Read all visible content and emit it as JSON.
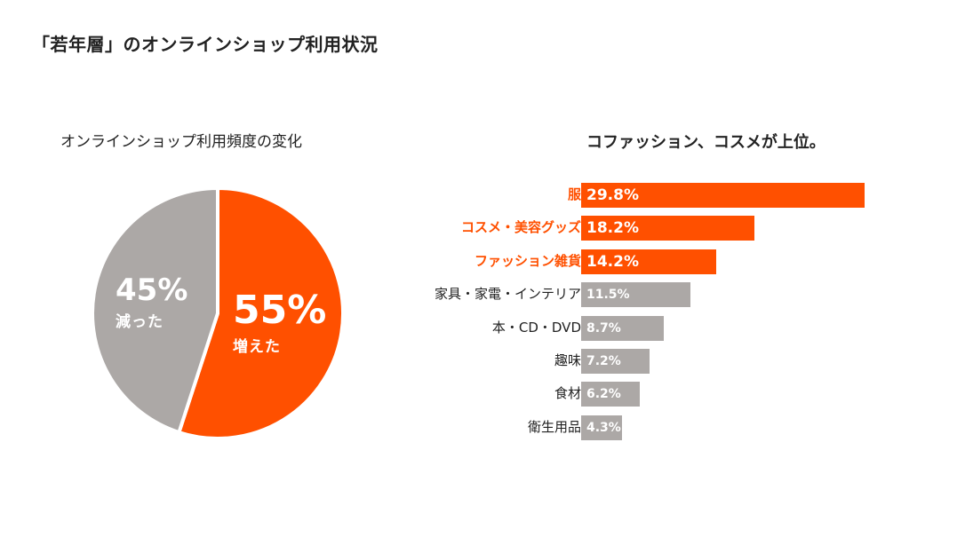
{
  "page": {
    "title": "「若年層」のオンラインショップ利用状況"
  },
  "colors": {
    "accent": "#ff5000",
    "neutral": "#aca8a6",
    "text": "#222222",
    "white": "#ffffff"
  },
  "chart_data": [
    {
      "type": "pie",
      "title": "オンラインショップ利用頻度の変化",
      "slices": [
        {
          "label": "増えた",
          "value": 55,
          "display": "55%",
          "color": "#ff5000"
        },
        {
          "label": "減った",
          "value": 45,
          "display": "45%",
          "color": "#aca8a6"
        }
      ]
    },
    {
      "type": "bar",
      "orientation": "horizontal",
      "title": "コファッション、コスメが上位。",
      "categories": [
        "服",
        "コスメ・美容グッズ",
        "ファッション雑貨",
        "家具・家電・インテリア",
        "本・CD・DVD",
        "趣味",
        "食材",
        "衛生用品"
      ],
      "values": [
        29.8,
        18.2,
        14.2,
        11.5,
        8.7,
        7.2,
        6.2,
        4.3
      ],
      "value_labels": [
        "29.8%",
        "18.2%",
        "14.2%",
        "11.5%",
        "8.7%",
        "7.2%",
        "6.2%",
        "4.3%"
      ],
      "highlight_count": 3,
      "xlim": [
        0,
        30
      ]
    }
  ]
}
